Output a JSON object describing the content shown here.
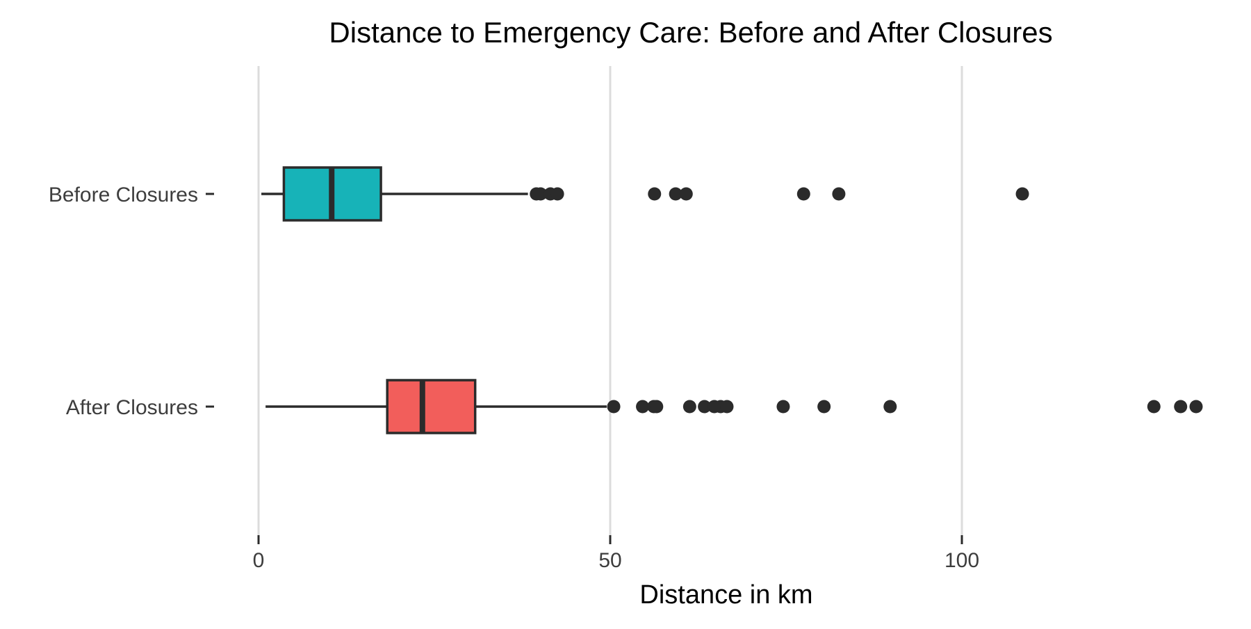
{
  "chart_data": {
    "type": "boxplot",
    "orientation": "horizontal",
    "title": "Distance to Emergency Care: Before and After Closures",
    "xlabel": "Distance in km",
    "ylabel": "",
    "xlim": [
      0,
      135
    ],
    "xticks": [
      0,
      50,
      100
    ],
    "xtick_labels": [
      "0",
      "50",
      "100"
    ],
    "grid": "vertical major gridlines",
    "legend": "none",
    "categories": [
      "Before Closures",
      "After Closures"
    ],
    "series": [
      {
        "category": "Before Closures",
        "color": "#17b3b8",
        "whisker_low": 0.4,
        "q1": 3.6,
        "median": 10.4,
        "q3": 17.4,
        "whisker_high": 38.3,
        "outliers": [
          39.5,
          40.1,
          41.5,
          42.5,
          56.3,
          59.3,
          60.8,
          77.5,
          82.5,
          108.6
        ]
      },
      {
        "category": "After Closures",
        "color": "#f25e5b",
        "whisker_low": 1.0,
        "q1": 18.3,
        "median": 23.3,
        "q3": 30.8,
        "whisker_high": 49.5,
        "outliers": [
          50.5,
          54.6,
          56.2,
          56.6,
          61.3,
          63.4,
          64.8,
          65.7,
          66.6,
          74.6,
          80.4,
          89.8,
          127.3,
          131.1,
          133.3
        ]
      }
    ]
  }
}
